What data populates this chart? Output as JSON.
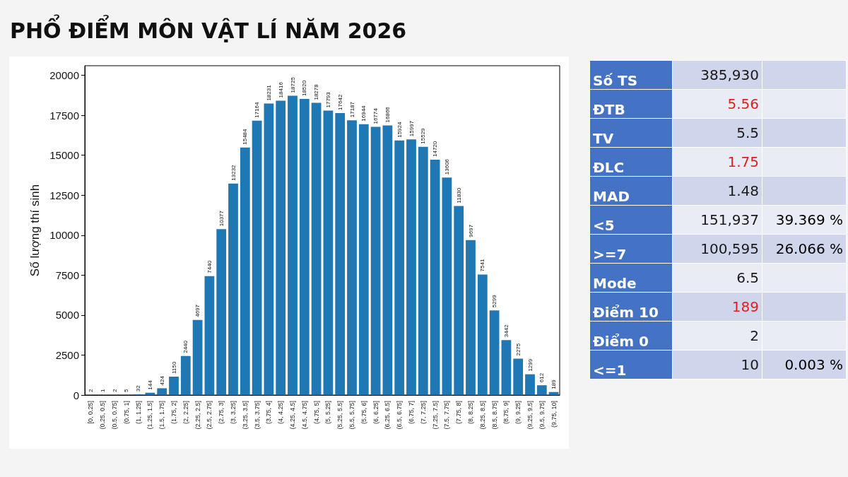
{
  "chart_data": [
    {
      "type": "bar",
      "title": "PHỔ ĐIỂM MÔN VẬT LÍ NĂM 2026",
      "ylabel": "Số lượng thí sinh",
      "categories": [
        "[0, 0.25]",
        "(0.25, 0.5]",
        "(0.5, 0.75]",
        "(0.75, 1]",
        "(1, 1.25]",
        "(1.25, 1.5]",
        "(1.5, 1.75]",
        "(1.75, 2]",
        "(2, 2.25]",
        "(2.25, 2.5]",
        "(2.5, 2.75]",
        "(2.75, 3]",
        "(3, 3.25]",
        "(3.25, 3.5]",
        "(3.5, 3.75]",
        "(3.75, 4]",
        "(4, 4.25]",
        "(4.25, 4.5]",
        "(4.5, 4.75]",
        "(4.75, 5]",
        "(5, 5.25]",
        "(5.25, 5.5]",
        "(5.5, 5.75]",
        "(5.75, 6]",
        "(6, 6.25]",
        "(6.25, 6.5]",
        "(6.5, 6.75]",
        "(6.75, 7]",
        "(7, 7.25]",
        "(7.25, 7.5]",
        "(7.5, 7.75]",
        "(7.75, 8]",
        "(8, 8.25]",
        "(8.25, 8.5]",
        "(8.5, 8.75]",
        "(8.75, 9]",
        "(9, 9.25]",
        "(9.25, 9.5]",
        "(9.5, 9.75]",
        "(9.75, 10]"
      ],
      "values": [
        2,
        1,
        2,
        5,
        32,
        144,
        424,
        1150,
        2440,
        4697,
        7440,
        10377,
        13232,
        15484,
        17164,
        18231,
        18416,
        18725,
        18520,
        18278,
        17793,
        17642,
        17187,
        16944,
        16774,
        16866,
        15924,
        15997,
        15529,
        14720,
        13606,
        11830,
        9697,
        7541,
        5299,
        3442,
        2275,
        1299,
        612,
        189
      ],
      "color": "#1f77b4",
      "ylim": [
        0,
        20600
      ],
      "yticks": [
        0,
        2500,
        5000,
        7500,
        10000,
        12500,
        15000,
        17500,
        20000
      ],
      "data_labels": true,
      "grid": false
    },
    {
      "type": "other",
      "y_categories": [
        "Số TS",
        "ĐTB",
        "TV",
        "ĐLC",
        "MAD",
        "<5",
        ">=7",
        "Mode",
        "Điểm 10",
        "Điểm 0",
        "<=1"
      ],
      "cell_labels": [
        [
          "385,930",
          null
        ],
        [
          "5.56",
          null
        ],
        [
          "5.5",
          null
        ],
        [
          "1.75",
          null
        ],
        [
          "1.48",
          null
        ],
        [
          "151,937",
          "39.369 %"
        ],
        [
          "100,595",
          "26.066 %"
        ],
        [
          "6.5",
          null
        ],
        [
          "189",
          null
        ],
        [
          "2",
          null
        ],
        [
          "10",
          "0.003 %"
        ]
      ],
      "colors": [
        "#1a1a1a",
        "#e0201c",
        "#1a1a1a",
        "#e0201c",
        "#1a1a1a",
        "#1a1a1a",
        "#1a1a1a",
        "#1a1a1a",
        "#e0201c",
        "#1a1a1a",
        "#1a1a1a"
      ]
    }
  ]
}
